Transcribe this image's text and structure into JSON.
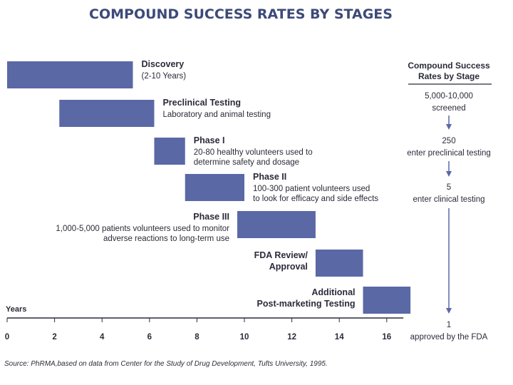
{
  "chart_data": {
    "type": "gantt",
    "title": "COMPOUND SUCCESS RATES BY STAGES",
    "xlabel": "Years",
    "xlim": [
      0,
      17
    ],
    "xticks": [
      0,
      2,
      4,
      6,
      8,
      10,
      12,
      14,
      16
    ],
    "bar_color": "#5a68a6",
    "stages": [
      {
        "name": "Discovery",
        "desc": [
          "(2-10 Years)"
        ],
        "start": 0,
        "end": 5.3,
        "label_side": "right"
      },
      {
        "name": "Preclinical Testing",
        "desc": [
          "Laboratory and animal testing"
        ],
        "start": 2.2,
        "end": 6.2,
        "label_side": "right"
      },
      {
        "name": "Phase I",
        "desc": [
          "20-80 healthy volunteers used to",
          "determine safety and dosage"
        ],
        "start": 6.2,
        "end": 7.5,
        "label_side": "right"
      },
      {
        "name": "Phase II",
        "desc": [
          "100-300 patient volunteers used",
          "to look for efficacy and side effects"
        ],
        "start": 7.5,
        "end": 10.0,
        "label_side": "right"
      },
      {
        "name": "Phase III",
        "desc": [
          "1,000-5,000 patients volunteers used to monitor",
          "adverse reactions to long-term use"
        ],
        "start": 9.7,
        "end": 13.0,
        "label_side": "left"
      },
      {
        "name": "FDA Review/\nApproval",
        "desc": [],
        "start": 13.0,
        "end": 15.0,
        "label_side": "left"
      },
      {
        "name": "Additional\nPost-marketing Testing",
        "desc": [],
        "start": 15.0,
        "end": 17.0,
        "label_side": "left"
      }
    ],
    "side_panel": {
      "heading": [
        "Compound Success",
        "Rates by Stage"
      ],
      "steps": [
        [
          "5,000-10,000",
          "screened"
        ],
        [
          "250",
          "enter preclinical testing"
        ],
        [
          "5",
          "enter clinical testing"
        ],
        [
          "1",
          "approved by the FDA"
        ]
      ]
    },
    "source": "Source: PhRMA,based on data from Center for the Study of Drug Development, Tufts University, 1995."
  }
}
